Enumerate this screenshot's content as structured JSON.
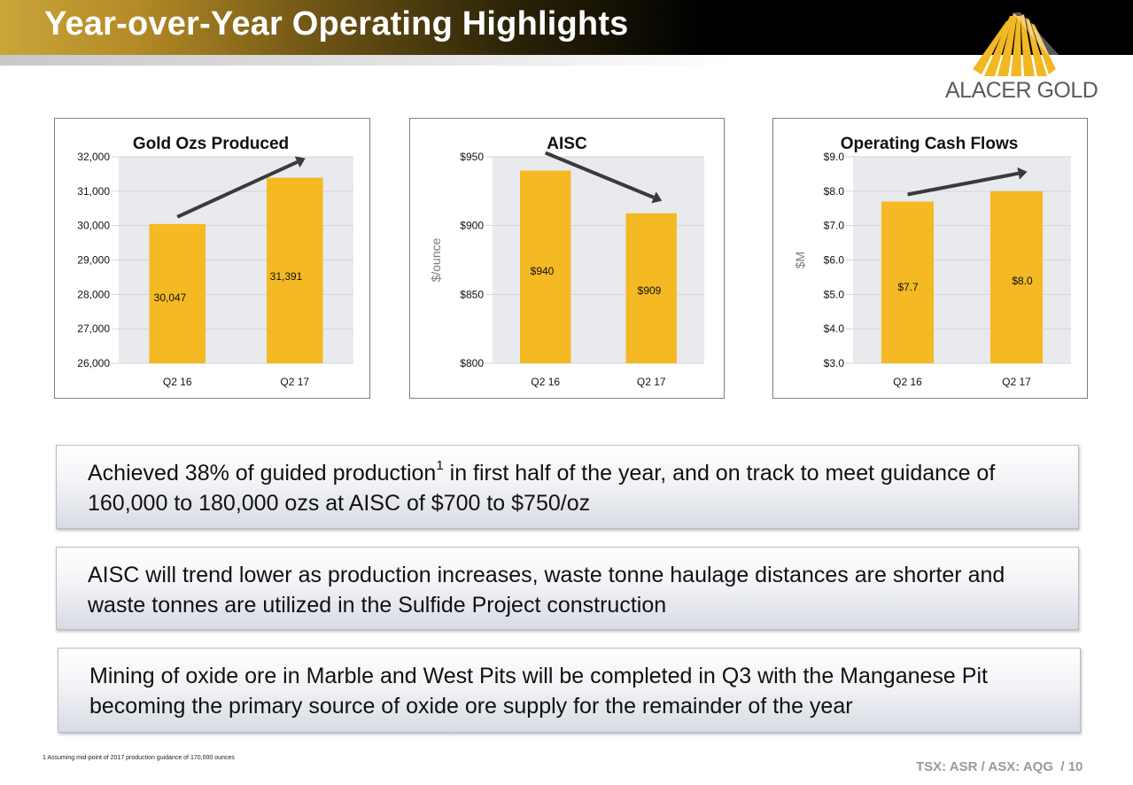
{
  "slide": {
    "title": "Year-over-Year Operating Highlights",
    "logo_text": "ALACER GOLD",
    "footnote": "1  Assuming mid-point of 2017 production guidance of 170,000 ounces",
    "ticker": "TSX: ASR / ASX: AQG",
    "page": "/ 10"
  },
  "callouts": [
    {
      "text": "Achieved 38% of guided production",
      "sup": "1",
      "text2": " in first half of the year, and on track to meet guidance of 160,000 to 180,000 ozs at AISC of $700 to $750/oz"
    },
    {
      "text": "AISC will trend lower as production increases, waste tonne haulage distances are shorter and waste tonnes are utilized in the Sulfide Project construction"
    },
    {
      "text": "Mining of oxide ore in Marble and West Pits will be completed in Q3 with the Manganese Pit becoming the primary source of oxide ore supply for the remainder of the year"
    }
  ],
  "colors": {
    "bar": "#F4B923",
    "plot_bg": "#E8EAEE",
    "arrow": "#3a3a3a",
    "title_gold": "#c9a43a"
  },
  "chart_data": [
    {
      "type": "bar",
      "title": "Gold Ozs Produced",
      "ylabel": "",
      "categories": [
        "Q2 16",
        "Q2 17"
      ],
      "values": [
        30047,
        31391
      ],
      "value_labels": [
        "30,047",
        "31,391"
      ],
      "ylim": [
        26000,
        32000
      ],
      "yticks": [
        26000,
        27000,
        28000,
        29000,
        30000,
        31000,
        32000
      ],
      "ytick_labels": [
        "26,000",
        "27,000",
        "28,000",
        "29,000",
        "30,000",
        "31,000",
        "32,000"
      ],
      "trend": "up"
    },
    {
      "type": "bar",
      "title": "AISC",
      "ylabel": "$/ounce",
      "categories": [
        "Q2 16",
        "Q2 17"
      ],
      "values": [
        940,
        909
      ],
      "value_labels": [
        "$940",
        "$909"
      ],
      "ylim": [
        800,
        950
      ],
      "yticks": [
        800,
        850,
        900,
        950
      ],
      "ytick_labels": [
        "$800",
        "$850",
        "$900",
        "$950"
      ],
      "trend": "down"
    },
    {
      "type": "bar",
      "title": "Operating Cash Flows",
      "ylabel": "$M",
      "categories": [
        "Q2 16",
        "Q2 17"
      ],
      "values": [
        7.7,
        8.0
      ],
      "value_labels": [
        "$7.7",
        "$8.0"
      ],
      "ylim": [
        3,
        9
      ],
      "yticks": [
        3,
        4,
        5,
        6,
        7,
        8,
        9
      ],
      "ytick_labels": [
        "$3.0",
        "$4.0",
        "$5.0",
        "$6.0",
        "$7.0",
        "$8.0",
        "$9.0"
      ],
      "trend": "up"
    }
  ]
}
